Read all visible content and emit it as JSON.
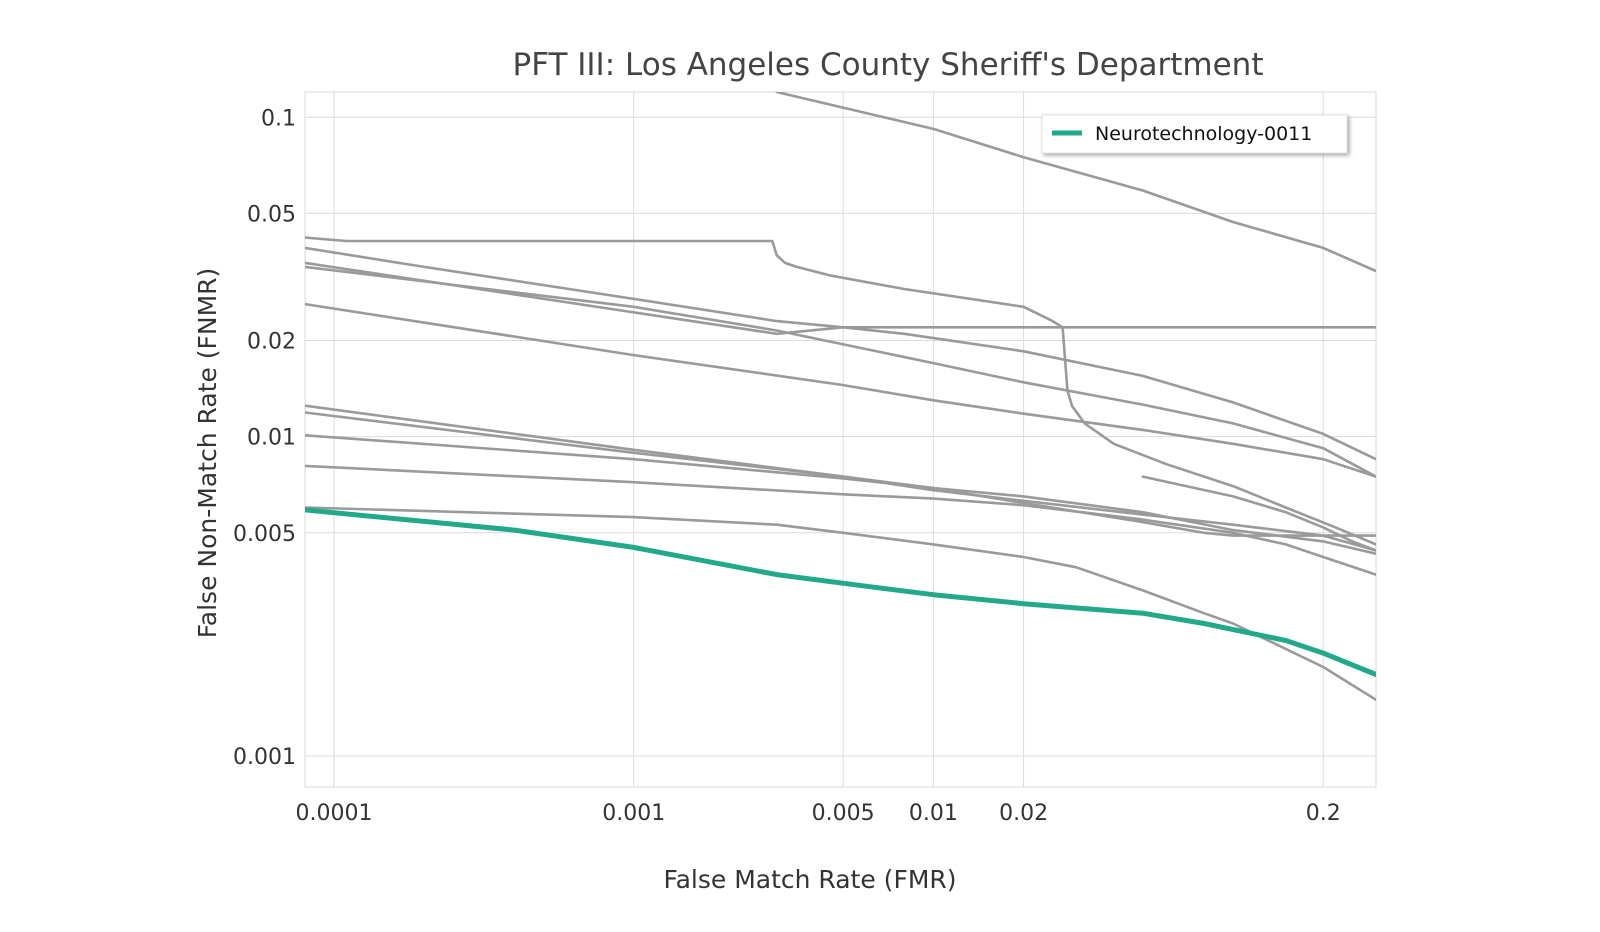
{
  "chart_data": {
    "type": "line",
    "title": "PFT III: Los Angeles County Sheriff's Department",
    "xlabel": "False Match Rate (FMR)",
    "ylabel": "False Non-Match Rate (FNMR)",
    "x_scale": "log",
    "y_scale": "log",
    "xlim": [
      8e-05,
      0.3
    ],
    "ylim": [
      0.0008,
      0.12
    ],
    "x_ticks": [
      0.0001,
      0.001,
      0.005,
      0.01,
      0.02,
      0.2
    ],
    "x_tick_labels": [
      "0.0001",
      "0.001",
      "0.005",
      "0.01",
      "0.02",
      "0.2"
    ],
    "y_ticks": [
      0.1,
      0.05,
      0.02,
      0.01,
      0.005,
      0.001
    ],
    "y_tick_labels": [
      "0.1",
      "0.05",
      "0.02",
      "0.01",
      "0.005",
      "0.001"
    ],
    "grid": true,
    "legend_position": "top-right",
    "highlight_color": "#22a98a",
    "other_color": "#9a9a9a",
    "series": [
      {
        "name": "Neurotechnology-0011",
        "highlight": true,
        "points": [
          [
            8e-05,
            0.0059
          ],
          [
            0.0004,
            0.0051
          ],
          [
            0.001,
            0.0045
          ],
          [
            0.003,
            0.0037
          ],
          [
            0.006,
            0.0034
          ],
          [
            0.01,
            0.0032
          ],
          [
            0.02,
            0.003
          ],
          [
            0.05,
            0.0028
          ],
          [
            0.08,
            0.0026
          ],
          [
            0.15,
            0.0023
          ],
          [
            0.2,
            0.0021
          ],
          [
            0.26,
            0.0019
          ],
          [
            0.3,
            0.0018
          ]
        ]
      },
      {
        "points": [
          [
            0.003,
            0.12
          ],
          [
            0.01,
            0.092
          ],
          [
            0.02,
            0.075
          ],
          [
            0.05,
            0.059
          ],
          [
            0.1,
            0.047
          ],
          [
            0.2,
            0.039
          ],
          [
            0.3,
            0.033
          ]
        ]
      },
      {
        "points": [
          [
            8e-05,
            0.042
          ],
          [
            0.00011,
            0.041
          ],
          [
            0.0029,
            0.041
          ],
          [
            0.003,
            0.037
          ],
          [
            0.0032,
            0.035
          ],
          [
            0.0035,
            0.034
          ],
          [
            0.0045,
            0.032
          ],
          [
            0.008,
            0.029
          ],
          [
            0.02,
            0.0255
          ],
          [
            0.025,
            0.023
          ],
          [
            0.027,
            0.022
          ],
          [
            0.028,
            0.014
          ],
          [
            0.029,
            0.0125
          ],
          [
            0.032,
            0.011
          ],
          [
            0.04,
            0.0095
          ],
          [
            0.06,
            0.0082
          ],
          [
            0.1,
            0.007
          ],
          [
            0.15,
            0.006
          ],
          [
            0.22,
            0.0052
          ],
          [
            0.3,
            0.0046
          ]
        ]
      },
      {
        "points": [
          [
            8e-05,
            0.039
          ],
          [
            0.0002,
            0.034
          ],
          [
            0.001,
            0.027
          ],
          [
            0.003,
            0.023
          ],
          [
            0.005,
            0.022
          ],
          [
            0.008,
            0.021
          ],
          [
            0.02,
            0.0185
          ],
          [
            0.05,
            0.0155
          ],
          [
            0.1,
            0.0128
          ],
          [
            0.2,
            0.0102
          ],
          [
            0.3,
            0.0085
          ]
        ]
      },
      {
        "points": [
          [
            8e-05,
            0.035
          ],
          [
            0.001,
            0.0245
          ],
          [
            0.003,
            0.021
          ],
          [
            0.005,
            0.022
          ],
          [
            0.3,
            0.022
          ]
        ]
      },
      {
        "points": [
          [
            8e-05,
            0.034
          ],
          [
            0.001,
            0.0255
          ],
          [
            0.003,
            0.0215
          ],
          [
            0.01,
            0.017
          ],
          [
            0.02,
            0.0148
          ],
          [
            0.05,
            0.0126
          ],
          [
            0.1,
            0.011
          ],
          [
            0.2,
            0.0092
          ],
          [
            0.3,
            0.0075
          ]
        ]
      },
      {
        "points": [
          [
            8e-05,
            0.026
          ],
          [
            0.001,
            0.018
          ],
          [
            0.005,
            0.0145
          ],
          [
            0.01,
            0.013
          ],
          [
            0.02,
            0.0118
          ],
          [
            0.05,
            0.0105
          ],
          [
            0.1,
            0.0095
          ],
          [
            0.2,
            0.0085
          ],
          [
            0.3,
            0.0075
          ]
        ]
      },
      {
        "points": [
          [
            8e-05,
            0.0125
          ],
          [
            0.001,
            0.0091
          ],
          [
            0.005,
            0.0075
          ],
          [
            0.01,
            0.0068
          ],
          [
            0.02,
            0.0063
          ],
          [
            0.05,
            0.0057
          ],
          [
            0.1,
            0.0053
          ],
          [
            0.2,
            0.0049
          ],
          [
            0.3,
            0.0044
          ]
        ]
      },
      {
        "points": [
          [
            8e-05,
            0.0119
          ],
          [
            0.001,
            0.0089
          ],
          [
            0.005,
            0.0075
          ],
          [
            0.01,
            0.0069
          ],
          [
            0.02,
            0.0065
          ],
          [
            0.05,
            0.0058
          ],
          [
            0.1,
            0.0051
          ],
          [
            0.2,
            0.0047
          ],
          [
            0.3,
            0.0043
          ]
        ]
      },
      {
        "points": [
          [
            8e-05,
            0.0101
          ],
          [
            0.001,
            0.0085
          ],
          [
            0.005,
            0.0074
          ],
          [
            0.01,
            0.0069
          ],
          [
            0.02,
            0.0062
          ],
          [
            0.05,
            0.0054
          ],
          [
            0.08,
            0.005
          ],
          [
            0.1,
            0.0049
          ],
          [
            0.3,
            0.0049
          ]
        ]
      },
      {
        "points": [
          [
            8e-05,
            0.0081
          ],
          [
            0.001,
            0.0072
          ],
          [
            0.005,
            0.0066
          ],
          [
            0.01,
            0.0064
          ],
          [
            0.02,
            0.0061
          ],
          [
            0.05,
            0.0055
          ],
          [
            0.1,
            0.005
          ],
          [
            0.15,
            0.0046
          ],
          [
            0.2,
            0.0042
          ],
          [
            0.3,
            0.0037
          ]
        ]
      },
      {
        "points": [
          [
            8e-05,
            0.006
          ],
          [
            0.001,
            0.0056
          ],
          [
            0.003,
            0.0053
          ],
          [
            0.005,
            0.005
          ],
          [
            0.01,
            0.0046
          ],
          [
            0.02,
            0.0042
          ],
          [
            0.03,
            0.0039
          ],
          [
            0.05,
            0.0033
          ],
          [
            0.08,
            0.0028
          ],
          [
            0.1,
            0.0026
          ],
          [
            0.2,
            0.0019
          ],
          [
            0.3,
            0.0015
          ]
        ]
      },
      {
        "points": [
          [
            0.05,
            0.0075
          ],
          [
            0.1,
            0.0065
          ],
          [
            0.15,
            0.0058
          ],
          [
            0.2,
            0.0052
          ],
          [
            0.25,
            0.0047
          ],
          [
            0.3,
            0.0044
          ]
        ]
      }
    ]
  }
}
